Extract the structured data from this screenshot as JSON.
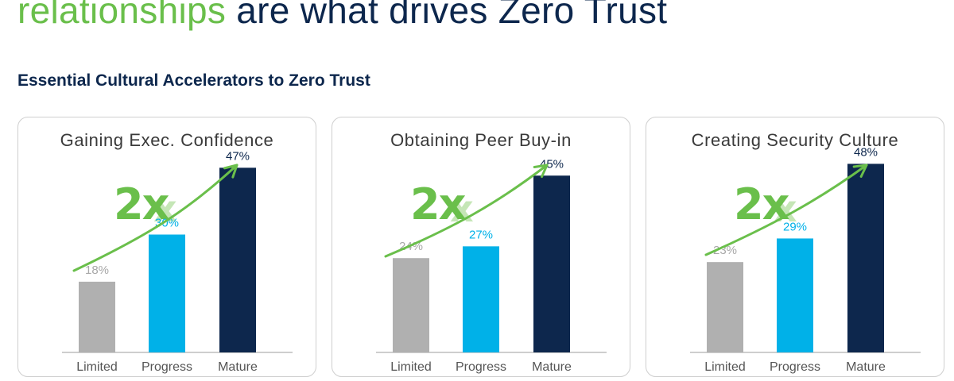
{
  "headline": {
    "part_green": "relationships",
    "part_dark": "are what drives Zero Trust"
  },
  "subheading": "Essential Cultural Accelerators to Zero Trust",
  "colors": {
    "limited": "#b0b0b0",
    "progress": "#00b1e8",
    "mature": "#0d274d",
    "accent_green": "#6abf4b"
  },
  "chart_data": [
    {
      "type": "bar",
      "title": "Gaining Exec. Confidence",
      "annotation": "2x",
      "categories": [
        "Limited",
        "Progress",
        "Mature"
      ],
      "values": [
        18,
        30,
        47
      ],
      "value_labels": [
        "18%",
        "30%",
        "47%"
      ],
      "ylim": [
        0,
        60
      ]
    },
    {
      "type": "bar",
      "title": "Obtaining Peer Buy-in",
      "annotation": "2x",
      "categories": [
        "Limited",
        "Progress",
        "Mature"
      ],
      "values": [
        24,
        27,
        45
      ],
      "value_labels": [
        "24%",
        "27%",
        "45%"
      ],
      "ylim": [
        0,
        60
      ]
    },
    {
      "type": "bar",
      "title": "Creating Security Culture",
      "annotation": "2x",
      "categories": [
        "Limited",
        "Progress",
        "Mature"
      ],
      "values": [
        23,
        29,
        48
      ],
      "value_labels": [
        "23%",
        "29%",
        "48%"
      ],
      "ylim": [
        0,
        60
      ]
    }
  ]
}
